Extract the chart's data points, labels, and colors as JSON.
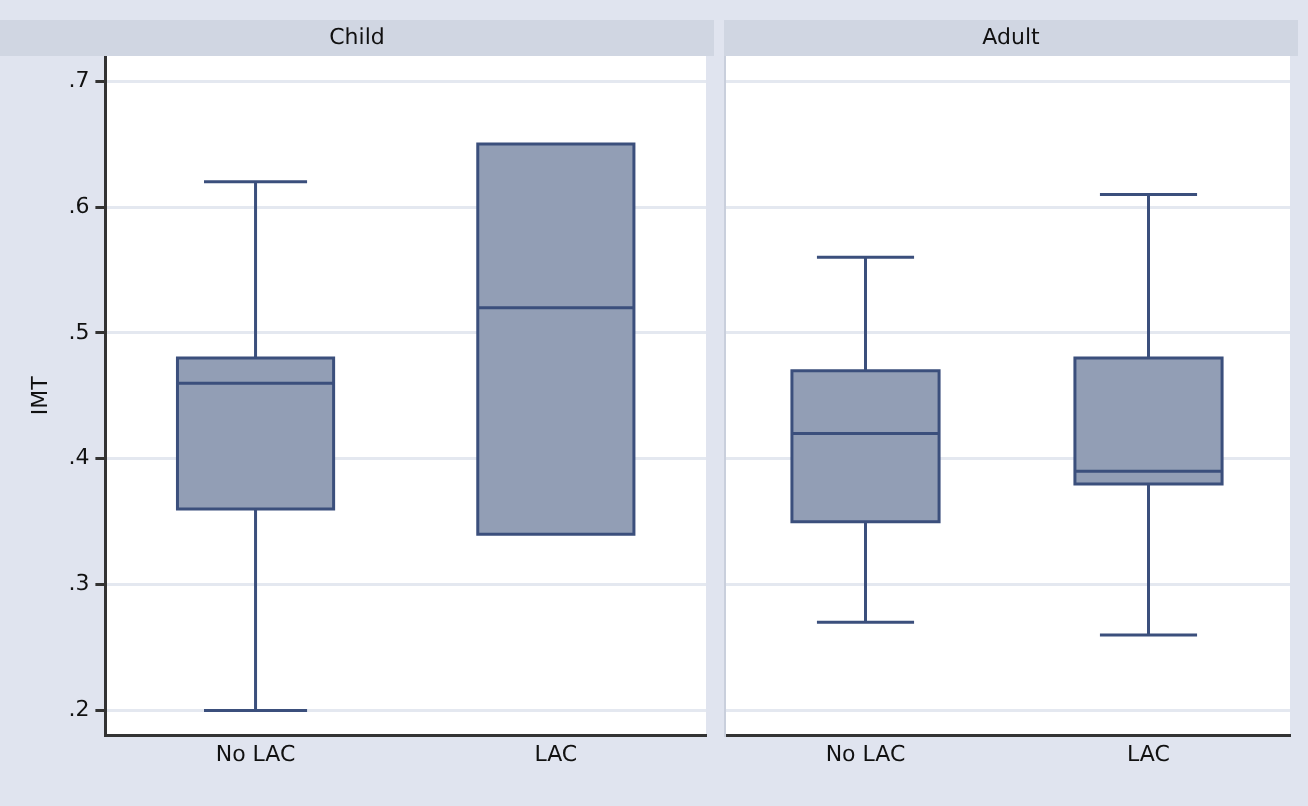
{
  "chart_data": [
    {
      "type": "box",
      "title": "Child",
      "ylabel": "IMT",
      "categories": [
        "No LAC",
        "LAC"
      ],
      "ylim": [
        0.18,
        0.72
      ],
      "yticks": [
        {
          "value": 0.2,
          "label": ".2"
        },
        {
          "value": 0.3,
          "label": ".3"
        },
        {
          "value": 0.4,
          "label": ".4"
        },
        {
          "value": 0.5,
          "label": ".5"
        },
        {
          "value": 0.6,
          "label": ".6"
        },
        {
          "value": 0.7,
          "label": ".7"
        }
      ],
      "grid": "y",
      "legend": false,
      "series": [
        {
          "color": "#929eb5",
          "boxes": [
            {
              "low": 0.2,
              "q1": 0.36,
              "median": 0.46,
              "q3": 0.48,
              "high": 0.62
            },
            {
              "low": 0.34,
              "q1": 0.34,
              "median": 0.52,
              "q3": 0.65,
              "high": 0.65
            }
          ]
        }
      ]
    },
    {
      "type": "box",
      "title": "Adult",
      "categories": [
        "No LAC",
        "LAC"
      ],
      "ylim": [
        0.18,
        0.72
      ],
      "yticks": [
        0.2,
        0.3,
        0.4,
        0.5,
        0.6,
        0.7
      ],
      "grid": "y",
      "legend": false,
      "tick_labels": "x",
      "series": [
        {
          "color": "#929eb5",
          "boxes": [
            {
              "low": 0.27,
              "q1": 0.35,
              "median": 0.42,
              "q3": 0.47,
              "high": 0.56
            },
            {
              "low": 0.26,
              "q1": 0.38,
              "median": 0.39,
              "q3": 0.48,
              "high": 0.61
            }
          ]
        }
      ]
    }
  ]
}
